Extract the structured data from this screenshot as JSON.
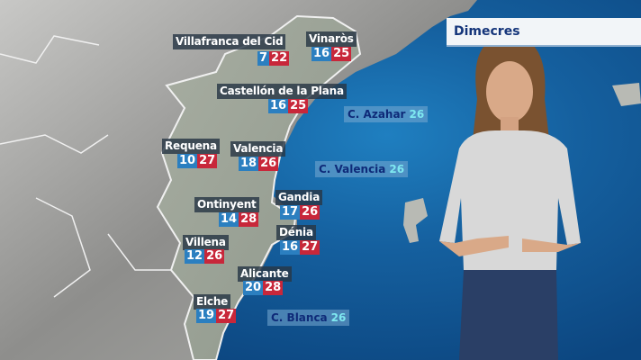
{
  "day_label": "Dimecres",
  "cities": [
    {
      "name": "Villafranca del Cid",
      "min": "7",
      "max": "22"
    },
    {
      "name": "Vinaròs",
      "min": "16",
      "max": "25"
    },
    {
      "name": "Castellón de la Plana",
      "min": "16",
      "max": "25"
    },
    {
      "name": "Requena",
      "min": "10",
      "max": "27"
    },
    {
      "name": "Valencia",
      "min": "18",
      "max": "26"
    },
    {
      "name": "Gandia",
      "min": "17",
      "max": "26"
    },
    {
      "name": "Ontinyent",
      "min": "14",
      "max": "28"
    },
    {
      "name": "Dénia",
      "min": "16",
      "max": "27"
    },
    {
      "name": "Villena",
      "min": "12",
      "max": "26"
    },
    {
      "name": "Alicante",
      "min": "20",
      "max": "28"
    },
    {
      "name": "Elche",
      "min": "19",
      "max": "27"
    }
  ],
  "sea_areas": [
    {
      "name": "C. Azahar",
      "temp": "26"
    },
    {
      "name": "C. Valencia",
      "temp": "26"
    },
    {
      "name": "C. Blanca",
      "temp": "26"
    }
  ],
  "colors": {
    "min_temp": "#2b7fc0",
    "max_temp": "#c8273a",
    "sea": "#15609f",
    "land": "#9a9a98"
  }
}
